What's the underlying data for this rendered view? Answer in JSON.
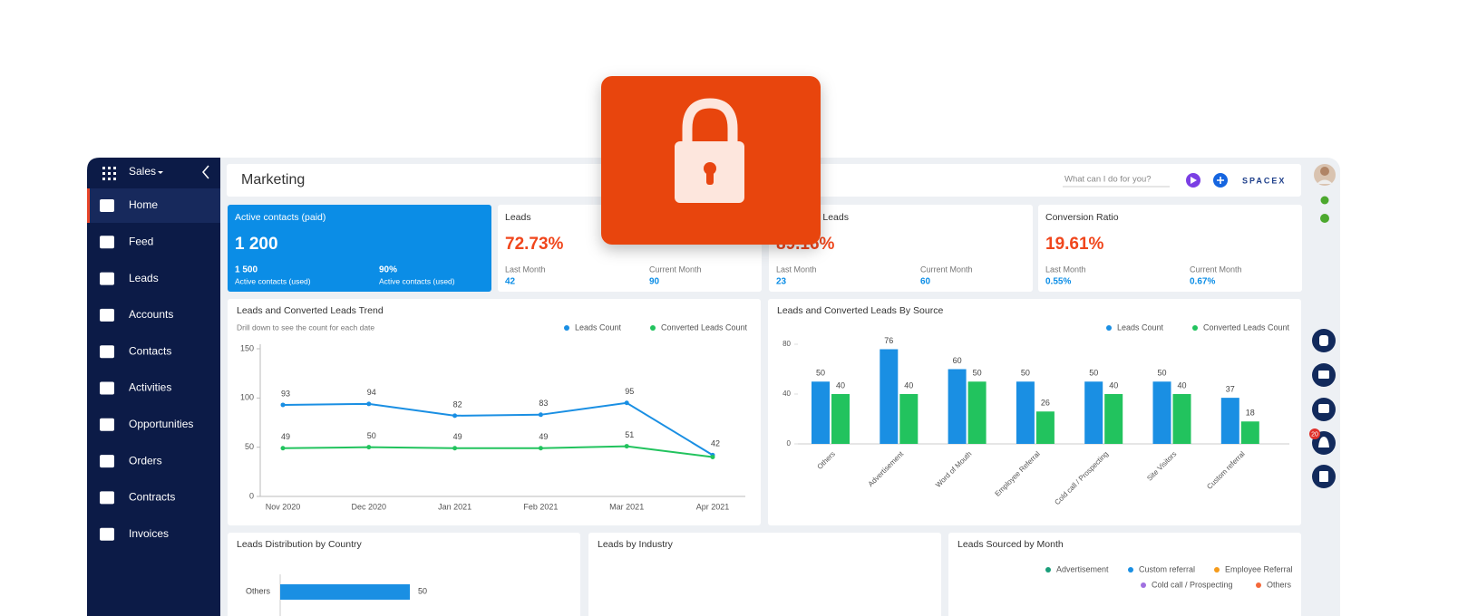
{
  "sidebar": {
    "app": "Sales",
    "items": [
      "Home",
      "Feed",
      "Leads",
      "Accounts",
      "Contacts",
      "Activities",
      "Opportunities",
      "Orders",
      "Contracts",
      "Invoices"
    ]
  },
  "header": {
    "title": "Marketing",
    "search": "What can I do for you?",
    "brand": "SPACEX"
  },
  "notifications": "20",
  "kpis": [
    {
      "title": "Active contacts (paid)",
      "value": "1 200",
      "stats": [
        {
          "value": "1 500",
          "label": "Active contacts (used)"
        },
        {
          "value": "90%",
          "label": "Active contacts (used)"
        }
      ]
    },
    {
      "title": "Leads",
      "value": "72.73%",
      "stats": [
        {
          "label": "Last Month",
          "value": "42"
        },
        {
          "label": "Current Month",
          "value": "90"
        }
      ]
    },
    {
      "title": "Converted Leads",
      "value": "89.16%",
      "stats": [
        {
          "label": "Last Month",
          "value": "23"
        },
        {
          "label": "Current Month",
          "value": "60"
        }
      ]
    },
    {
      "title": "Conversion Ratio",
      "value": "19.61%",
      "stats": [
        {
          "label": "Last Month",
          "value": "0.55%"
        },
        {
          "label": "Current Month",
          "value": "0.67%"
        }
      ]
    }
  ],
  "chart_data": [
    {
      "type": "line",
      "title": "Leads and Converted Leads Trend",
      "subtitle": "Drill down to see the count for each date",
      "categories": [
        "Nov 2020",
        "Dec 2020",
        "Jan 2021",
        "Feb 2021",
        "Mar 2021",
        "Apr 2021"
      ],
      "ylim": [
        0,
        150
      ],
      "yticks": [
        0,
        50,
        100,
        150
      ],
      "series": [
        {
          "name": "Leads Count",
          "color": "#1a8fe3",
          "values": [
            93,
            94,
            82,
            83,
            95,
            42
          ]
        },
        {
          "name": "Converted Leads Count",
          "color": "#22c35e",
          "values": [
            49,
            50,
            49,
            49,
            51,
            40
          ],
          "value_labels": [
            "49",
            "50",
            "49",
            "49",
            "51",
            null
          ]
        }
      ]
    },
    {
      "type": "bar",
      "title": "Leads and Converted Leads By Source",
      "categories": [
        "Others",
        "Advertisement",
        "Word of Mouth",
        "Employee Referral",
        "Cold call / Prospecting",
        "Site Visitors",
        "Custom referral"
      ],
      "ylim": [
        0,
        80
      ],
      "yticks": [
        0,
        40,
        80
      ],
      "series": [
        {
          "name": "Leads Count",
          "color": "#1a8fe3",
          "values": [
            50,
            76,
            60,
            50,
            50,
            50,
            37
          ]
        },
        {
          "name": "Converted Leads Count",
          "color": "#22c35e",
          "values": [
            40,
            40,
            50,
            26,
            40,
            40,
            18
          ]
        }
      ]
    },
    {
      "type": "hbar",
      "title": "Leads Distribution by Country",
      "categories": [
        "Others"
      ],
      "values": [
        50
      ],
      "xlim": [
        0,
        100
      ],
      "color": "#1a8fe3"
    },
    {
      "type": "bar",
      "title": "Leads by Industry"
    },
    {
      "type": "bar",
      "title": "Leads Sourced by Month",
      "series": [
        {
          "name": "Advertisement",
          "color": "#1a9e7a"
        },
        {
          "name": "Custom referral",
          "color": "#1a8fe3"
        },
        {
          "name": "Employee Referral",
          "color": "#f59b1b"
        },
        {
          "name": "Cold call / Prospecting",
          "color": "#a070e0"
        },
        {
          "name": "Others",
          "color": "#f4683a"
        }
      ]
    }
  ]
}
